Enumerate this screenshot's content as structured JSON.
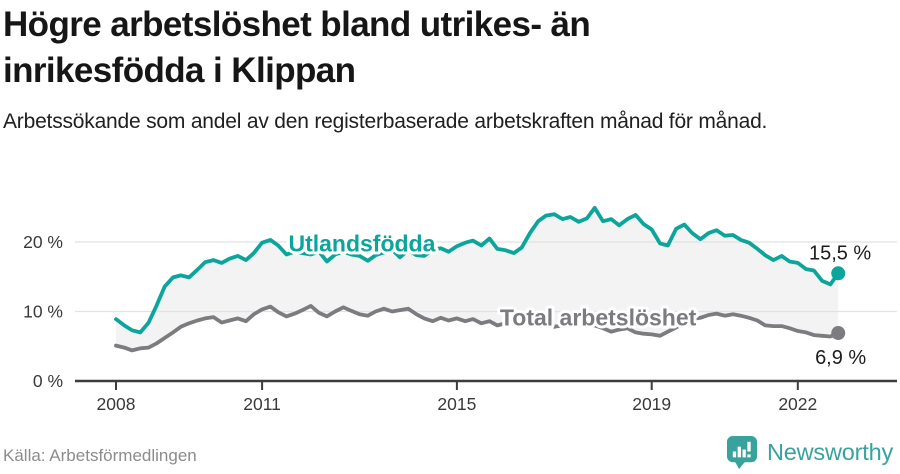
{
  "footer": {
    "brand": "Newsworthy"
  },
  "colors": {
    "accent_teal": "#0ba59b",
    "series_gray": "#7c7c80",
    "band_fill": "#f3f3f3",
    "gridline": "#e2e2e2",
    "axis": "#3c3c3c",
    "title_text": "#161616",
    "body_text": "#202020",
    "muted_text": "#8c8c8c",
    "brand_teal": "#38a39c"
  },
  "chart_data": {
    "type": "line",
    "title": "Högre arbetslöshet bland utrikes- än inrikesfödda i Klippan",
    "subtitle": "Arbetssökande som andel av den registerbaserade arbetskraften månad för månad.",
    "source_label": "Källa: Arbetsförmedlingen",
    "x_unit": "year, monthly observations",
    "y_unit": "%",
    "xlim": [
      2008,
      2023
    ],
    "ylim": [
      0,
      26
    ],
    "grid": "horizontal-only",
    "legend_position": "inline-labels-on-lines",
    "x_ticks": [
      2008,
      2011,
      2015,
      2019,
      2022
    ],
    "y_ticks": [
      {
        "value": 0,
        "label": "0 %"
      },
      {
        "value": 10,
        "label": "10 %"
      },
      {
        "value": 20,
        "label": "20 %"
      }
    ],
    "x": [
      2008,
      2008.17,
      2008.33,
      2008.5,
      2008.67,
      2008.83,
      2009,
      2009.17,
      2009.33,
      2009.5,
      2009.67,
      2009.83,
      2010,
      2010.17,
      2010.33,
      2010.5,
      2010.67,
      2010.83,
      2011,
      2011.17,
      2011.33,
      2011.5,
      2011.67,
      2011.83,
      2012,
      2012.17,
      2012.33,
      2012.5,
      2012.67,
      2012.83,
      2013,
      2013.17,
      2013.33,
      2013.5,
      2013.67,
      2013.83,
      2014,
      2014.17,
      2014.33,
      2014.5,
      2014.67,
      2014.83,
      2015,
      2015.17,
      2015.33,
      2015.5,
      2015.67,
      2015.83,
      2016,
      2016.17,
      2016.33,
      2016.5,
      2016.67,
      2016.83,
      2017,
      2017.17,
      2017.33,
      2017.5,
      2017.67,
      2017.83,
      2018,
      2018.17,
      2018.33,
      2018.5,
      2018.67,
      2018.83,
      2019,
      2019.17,
      2019.33,
      2019.5,
      2019.67,
      2019.83,
      2020,
      2020.17,
      2020.33,
      2020.5,
      2020.67,
      2020.83,
      2021,
      2021.17,
      2021.33,
      2021.5,
      2021.67,
      2021.83,
      2022,
      2022.17,
      2022.33,
      2022.5,
      2022.67,
      2022.83
    ],
    "series": [
      {
        "name": "Utlandsfödda",
        "color": "#0ba59b",
        "end_label": "15,5 %",
        "end_value": 15.5,
        "label_x": 2013.05,
        "label_y": 18.6,
        "values": [
          8.9,
          8,
          7.3,
          7,
          8.4,
          10.8,
          13.6,
          14.9,
          15.2,
          14.9,
          16,
          17.1,
          17.4,
          17,
          17.6,
          18,
          17.4,
          18.4,
          19.9,
          20.3,
          19.5,
          18.2,
          18.6,
          18.4,
          18.2,
          18.6,
          17.2,
          18.2,
          18.6,
          18.2,
          18,
          17.3,
          18.1,
          18.5,
          18.9,
          17.8,
          18.8,
          18.1,
          18,
          18.9,
          19.1,
          18.6,
          19.4,
          19.9,
          20.2,
          19.5,
          20.5,
          19,
          18.8,
          18.4,
          19.2,
          21.3,
          23,
          23.8,
          24,
          23.3,
          23.6,
          22.9,
          23.4,
          24.9,
          23,
          23.3,
          22.4,
          23.3,
          23.9,
          22.6,
          21.8,
          19.8,
          19.5,
          21.9,
          22.5,
          21.3,
          20.4,
          21.3,
          21.7,
          20.9,
          21,
          20.3,
          19.9,
          19,
          18.1,
          17.4,
          18,
          17.2,
          17,
          16.1,
          15.9,
          14.4,
          13.9,
          15.5
        ]
      },
      {
        "name": "Total arbetslöshet",
        "color": "#7c7c80",
        "end_label": "6,9 %",
        "end_value": 6.9,
        "label_x": 2017.9,
        "label_y": 8.0,
        "values": [
          5.1,
          4.8,
          4.4,
          4.7,
          4.8,
          5.4,
          6.2,
          7,
          7.8,
          8.3,
          8.7,
          9,
          9.2,
          8.4,
          8.7,
          9,
          8.6,
          9.6,
          10.3,
          10.7,
          9.9,
          9.3,
          9.7,
          10.2,
          10.8,
          9.8,
          9.3,
          10,
          10.6,
          10.1,
          9.6,
          9.4,
          10,
          10.4,
          10,
          10.2,
          10.4,
          9.6,
          9,
          8.6,
          9.1,
          8.7,
          9,
          8.6,
          8.9,
          8.3,
          8.6,
          8,
          8.3,
          8.6,
          8.3,
          8.7,
          8.9,
          8.5,
          7.8,
          8,
          8.3,
          8,
          8.4,
          8,
          7.6,
          7.1,
          7.4,
          7.6,
          7,
          6.8,
          6.7,
          6.5,
          7.1,
          7.7,
          8.4,
          8.9,
          9.1,
          9.5,
          9.7,
          9.4,
          9.6,
          9.4,
          9.1,
          8.7,
          8,
          7.9,
          7.9,
          7.6,
          7.2,
          7,
          6.6,
          6.5,
          6.4,
          6.9
        ]
      }
    ]
  }
}
